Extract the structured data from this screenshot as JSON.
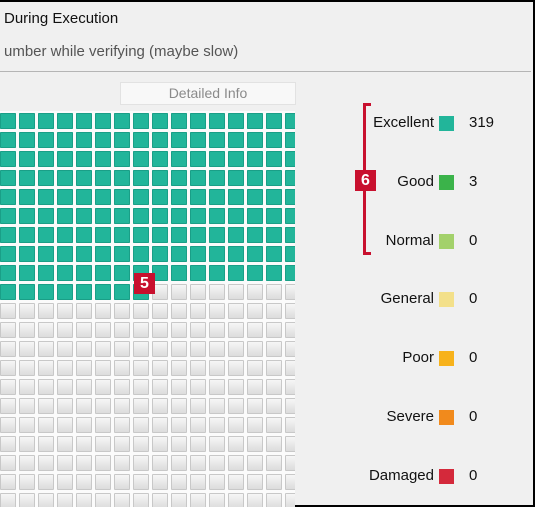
{
  "window": {
    "title_partial": "During Execution",
    "subtitle_partial": "umber while verifying (maybe slow)"
  },
  "detailed_info_button": "Detailed Info",
  "grid": {
    "green_full_rows": 9,
    "green_last_row_cells": 8,
    "columns": 16,
    "total_rows": 21,
    "green_color": "#22b59a"
  },
  "annotations": {
    "badge_5": "5",
    "badge_6": "6"
  },
  "legend": [
    {
      "label": "Excellent",
      "color": "#22b59a",
      "count": "319"
    },
    {
      "label": "Good",
      "color": "#3bb34a",
      "count": "3"
    },
    {
      "label": "Normal",
      "color": "#a3d16b",
      "count": "0"
    },
    {
      "label": "General",
      "color": "#f3e08a",
      "count": "0"
    },
    {
      "label": "Poor",
      "color": "#f7b21b",
      "count": "0"
    },
    {
      "label": "Severe",
      "color": "#f18a1c",
      "count": "0"
    },
    {
      "label": "Damaged",
      "color": "#d4293b",
      "count": "0"
    }
  ]
}
